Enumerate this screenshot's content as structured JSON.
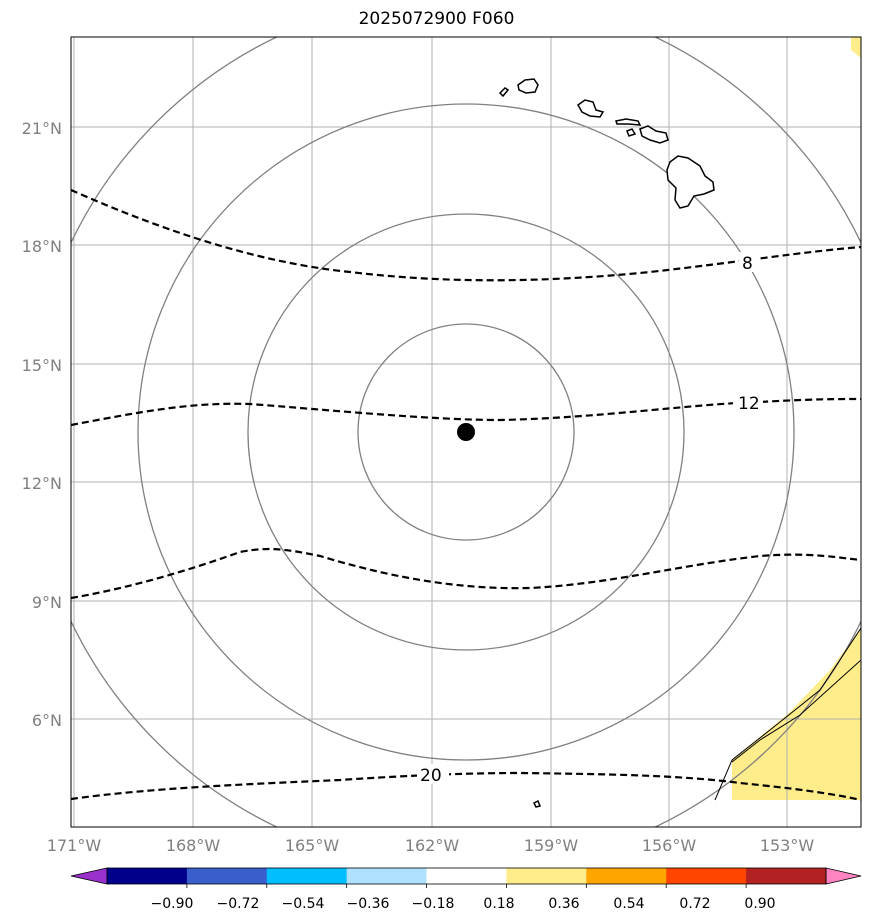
{
  "title": "2025072900 F060",
  "map": {
    "lon_range": [
      -171,
      -151
    ],
    "lat_range": [
      3,
      23
    ],
    "lon_ticks": [
      "171°W",
      "168°W",
      "165°W",
      "162°W",
      "159°W",
      "156°W",
      "153°W"
    ],
    "lat_ticks": [
      "21°N",
      "18°N",
      "15°N",
      "12°N",
      "9°N",
      "6°N"
    ],
    "grid": true,
    "storm_center": {
      "lon": -161.1,
      "lat": 13.3
    },
    "range_rings": "concentric circles around storm center",
    "contour_labels": [
      "8",
      "12",
      "20"
    ],
    "colors": {
      "gridline": "#b0b0b0",
      "ring": "#808080",
      "contour": "#000000",
      "shading": "#ffec8b"
    }
  },
  "colorbar": {
    "tick_labels": [
      "−0.90",
      "−0.72",
      "−0.54",
      "−0.36",
      "−0.18",
      "0.18",
      "0.36",
      "0.54",
      "0.72",
      "0.90"
    ],
    "colors": [
      "#9932cc",
      "#00008b",
      "#3a5fcd",
      "#00bfff",
      "#b0e2ff",
      "#ffffff",
      "#ffec8b",
      "#ffa500",
      "#ff4500",
      "#b22222",
      "#ff83c0"
    ],
    "extend": "both"
  }
}
